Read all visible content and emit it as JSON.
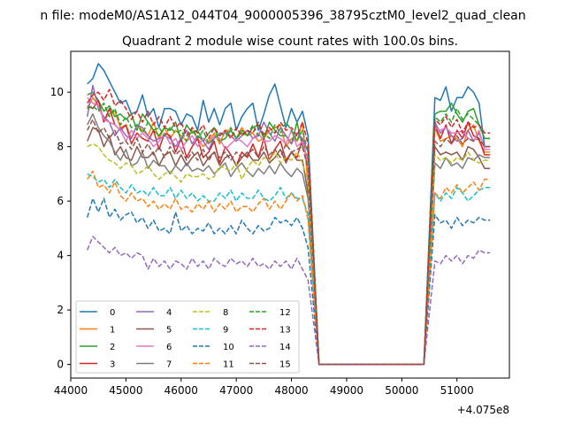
{
  "chart_data": {
    "type": "line",
    "suptitle": "n file: modeM0/AS1A12_044T04_9000005396_38795cztM0_level2_quad_clean",
    "title": "Quadrant 2 module wise count rates with 100.0s bins.",
    "xlabel": "",
    "ylabel": "",
    "x_offset_label": "+4.075e8",
    "xlim": [
      44000,
      51950
    ],
    "ylim": [
      -0.5,
      11.5
    ],
    "x_ticks": [
      44000,
      45000,
      46000,
      47000,
      48000,
      49000,
      50000,
      51000
    ],
    "y_ticks": [
      0,
      2,
      4,
      6,
      8,
      10
    ],
    "grid": false,
    "legend": {
      "placement": "lower-left",
      "columns": 4
    },
    "series": [
      {
        "name": "0",
        "color": "#1f77b4",
        "dash": "solid",
        "values": [
          10.3,
          10.5,
          11.05,
          10.8,
          10.4,
          10.0,
          9.6,
          9.7,
          9.2,
          9.3,
          9.9,
          9.1,
          9.4,
          8.7,
          9.4,
          9.4,
          9.3,
          8.8,
          9.2,
          9.1,
          8.6,
          9.7,
          8.9,
          9.4,
          8.8,
          9.4,
          9.6,
          8.6,
          9.1,
          9.4,
          9.6,
          8.6,
          9.2,
          9.9,
          10.3,
          9.5,
          8.7,
          9.4,
          8.9,
          9.3,
          8.4,
          9.8,
          9.7,
          10.2,
          9.3,
          9.8,
          9.8,
          10.2,
          10.0,
          9.6,
          8.0
        ]
      },
      {
        "name": "1",
        "color": "#ff7f0e",
        "dash": "solid",
        "values": [
          9.4,
          9.8,
          9.5,
          9.0,
          9.2,
          9.3,
          8.7,
          8.8,
          8.3,
          8.8,
          8.6,
          8.4,
          8.9,
          8.3,
          8.7,
          8.3,
          8.6,
          8.4,
          8.2,
          8.6,
          8.3,
          8.0,
          8.2,
          8.5,
          8.1,
          8.6,
          8.6,
          8.3,
          8.7,
          8.4,
          8.5,
          8.2,
          8.3,
          8.6,
          8.7,
          8.8,
          8.0,
          8.3,
          8.2,
          8.9,
          6.6,
          8.7,
          8.2,
          8.3,
          8.4,
          8.3,
          8.0,
          8.6,
          8.8,
          8.2,
          7.8
        ]
      },
      {
        "name": "2",
        "color": "#2ca02c",
        "dash": "solid",
        "values": [
          9.9,
          10.0,
          9.7,
          9.3,
          9.5,
          9.1,
          9.2,
          9.0,
          9.2,
          8.6,
          9.2,
          8.9,
          8.6,
          8.4,
          8.7,
          8.6,
          8.9,
          8.2,
          8.8,
          8.5,
          8.6,
          8.2,
          8.5,
          8.7,
          8.2,
          8.3,
          8.6,
          8.3,
          8.6,
          8.4,
          8.7,
          8.8,
          8.3,
          8.9,
          8.6,
          8.4,
          8.4,
          8.1,
          8.9,
          8.0,
          7.6,
          9.2,
          9.3,
          9.3,
          9.6,
          9.2,
          8.9,
          9.3,
          9.4,
          8.8,
          8.3
        ]
      },
      {
        "name": "3",
        "color": "#d62728",
        "dash": "solid",
        "values": [
          9.5,
          9.4,
          9.7,
          8.9,
          9.4,
          8.8,
          8.6,
          8.8,
          8.1,
          8.5,
          8.3,
          8.2,
          8.6,
          7.9,
          8.5,
          8.4,
          7.8,
          8.3,
          7.6,
          8.0,
          8.3,
          7.6,
          7.8,
          8.2,
          7.4,
          8.0,
          7.7,
          7.3,
          7.8,
          7.6,
          8.1,
          7.6,
          8.3,
          7.5,
          7.9,
          8.2,
          7.5,
          7.8,
          7.6,
          8.3,
          7.3,
          8.8,
          8.3,
          8.8,
          8.1,
          8.6,
          8.3,
          8.9,
          8.4,
          8.3,
          7.7
        ]
      },
      {
        "name": "4",
        "color": "#9467bd",
        "dash": "solid",
        "values": [
          9.1,
          10.25,
          9.4,
          9.1,
          8.9,
          8.4,
          8.7,
          8.4,
          8.3,
          8.8,
          8.7,
          8.4,
          8.2,
          8.3,
          8.4,
          8.3,
          8.0,
          8.3,
          8.6,
          8.1,
          8.4,
          8.2,
          7.9,
          8.3,
          8.5,
          8.5,
          8.4,
          8.2,
          8.4,
          8.6,
          8.3,
          8.4,
          8.9,
          8.5,
          8.2,
          8.7,
          8.4,
          8.1,
          8.5,
          8.3,
          7.8,
          8.9,
          8.5,
          8.7,
          8.4,
          8.2,
          8.3,
          8.6,
          8.2,
          8.5,
          8.0
        ]
      },
      {
        "name": "5",
        "color": "#8c564b",
        "dash": "solid",
        "values": [
          8.2,
          8.7,
          8.6,
          8.0,
          8.4,
          7.7,
          8.0,
          7.6,
          7.5,
          8.0,
          7.6,
          7.6,
          7.8,
          7.3,
          7.7,
          7.8,
          7.3,
          7.7,
          7.3,
          7.6,
          7.8,
          7.3,
          7.6,
          7.8,
          7.3,
          7.6,
          7.7,
          7.3,
          7.6,
          7.8,
          7.5,
          7.5,
          7.8,
          7.4,
          7.6,
          7.9,
          7.4,
          7.8,
          7.5,
          7.5,
          6.3,
          8.0,
          7.7,
          7.8,
          7.7,
          7.8,
          7.5,
          8.0,
          7.9,
          7.6,
          7.2
        ]
      },
      {
        "name": "6",
        "color": "#e377c2",
        "dash": "solid",
        "values": [
          9.8,
          9.6,
          9.5,
          9.0,
          8.9,
          8.8,
          8.6,
          8.2,
          8.6,
          8.3,
          8.5,
          8.3,
          8.0,
          8.2,
          8.5,
          8.1,
          8.3,
          7.9,
          8.2,
          8.4,
          8.0,
          8.3,
          8.1,
          8.4,
          8.3,
          7.9,
          8.1,
          8.3,
          8.2,
          8.0,
          8.3,
          8.5,
          8.2,
          8.2,
          8.4,
          8.3,
          8.1,
          8.6,
          8.0,
          8.2,
          7.4,
          8.7,
          8.6,
          8.7,
          8.5,
          8.5,
          8.6,
          8.3,
          8.2,
          8.6,
          7.9
        ]
      },
      {
        "name": "7",
        "color": "#7f7f7f",
        "dash": "solid",
        "values": [
          8.8,
          9.2,
          8.7,
          8.4,
          8.2,
          7.8,
          7.5,
          7.9,
          7.3,
          7.4,
          7.8,
          7.2,
          7.5,
          7.3,
          7.3,
          7.0,
          7.3,
          7.1,
          7.4,
          7.1,
          7.2,
          7.1,
          7.3,
          7.0,
          7.2,
          7.4,
          6.9,
          7.2,
          7.4,
          7.1,
          6.9,
          7.2,
          7.0,
          7.3,
          7.0,
          7.4,
          7.1,
          6.9,
          7.2,
          7.0,
          6.1,
          7.4,
          7.2,
          7.6,
          7.3,
          7.4,
          7.2,
          7.6,
          7.5,
          7.7,
          7.6
        ]
      },
      {
        "name": "8",
        "color": "#bcbd22",
        "dash": "dashed",
        "values": [
          8.0,
          8.1,
          8.0,
          7.7,
          7.5,
          7.4,
          7.2,
          7.4,
          7.3,
          7.0,
          7.1,
          7.3,
          7.0,
          6.8,
          7.0,
          7.1,
          6.9,
          6.7,
          7.0,
          6.9,
          6.9,
          7.0,
          6.8,
          6.9,
          7.3,
          7.2,
          7.1,
          7.4,
          6.8,
          7.2,
          7.5,
          7.3,
          7.6,
          7.5,
          7.8,
          7.4,
          7.6,
          7.5,
          7.8,
          7.4,
          6.7,
          7.7,
          7.5,
          7.6,
          7.4,
          7.6,
          7.5,
          7.8,
          7.5,
          7.4,
          7.5
        ]
      },
      {
        "name": "9",
        "color": "#17becf",
        "dash": "dashed",
        "values": [
          7.0,
          6.9,
          6.7,
          6.8,
          6.5,
          6.8,
          6.5,
          6.3,
          6.6,
          6.3,
          6.4,
          6.2,
          6.5,
          6.2,
          6.2,
          6.5,
          6.1,
          6.4,
          6.1,
          6.3,
          6.0,
          6.2,
          6.0,
          6.0,
          6.3,
          6.1,
          6.4,
          6.0,
          6.3,
          6.1,
          6.1,
          6.4,
          6.1,
          6.0,
          6.2,
          6.5,
          6.1,
          6.3,
          6.1,
          6.1,
          5.5,
          6.3,
          6.0,
          6.3,
          6.1,
          6.5,
          6.3,
          6.0,
          6.2,
          6.4,
          6.5
        ]
      },
      {
        "name": "10",
        "color": "#1f77b4",
        "dash": "dashed",
        "values": [
          5.4,
          6.1,
          5.6,
          6.1,
          5.4,
          5.7,
          5.3,
          5.5,
          5.6,
          5.2,
          5.4,
          5.0,
          5.3,
          4.9,
          5.0,
          4.8,
          5.6,
          4.9,
          5.1,
          4.8,
          5.0,
          4.9,
          5.2,
          4.8,
          5.0,
          4.8,
          5.1,
          4.8,
          5.3,
          5.0,
          4.8,
          5.1,
          4.9,
          5.0,
          5.4,
          5.2,
          5.3,
          5.1,
          5.4,
          5.0,
          4.3,
          5.5,
          5.2,
          5.3,
          5.0,
          5.4,
          5.1,
          5.3,
          5.2,
          5.4,
          5.3
        ]
      },
      {
        "name": "11",
        "color": "#ff7f0e",
        "dash": "dashed",
        "values": [
          6.8,
          7.1,
          6.5,
          6.6,
          6.3,
          6.7,
          6.2,
          6.0,
          6.3,
          6.0,
          6.1,
          5.8,
          6.0,
          5.7,
          5.9,
          5.7,
          6.1,
          5.7,
          5.8,
          5.6,
          5.9,
          5.7,
          6.0,
          5.6,
          5.9,
          5.7,
          6.0,
          5.6,
          5.8,
          5.8,
          5.6,
          5.9,
          6.1,
          5.7,
          6.0,
          5.7,
          6.0,
          6.3,
          6.0,
          6.2,
          5.3,
          6.3,
          6.1,
          6.5,
          6.3,
          6.6,
          6.3,
          6.5,
          6.7,
          6.4,
          6.8
        ]
      },
      {
        "name": "12",
        "color": "#2ca02c",
        "dash": "dashed",
        "values": [
          9.4,
          9.5,
          9.3,
          9.6,
          9.1,
          9.4,
          8.8,
          9.1,
          8.7,
          8.8,
          8.5,
          8.9,
          8.6,
          8.7,
          8.4,
          8.7,
          8.5,
          8.6,
          8.2,
          8.7,
          8.3,
          8.6,
          8.1,
          8.3,
          8.5,
          8.4,
          8.7,
          8.3,
          8.5,
          8.4,
          8.8,
          8.4,
          8.5,
          8.3,
          8.8,
          8.5,
          8.9,
          8.6,
          8.2,
          8.6,
          7.8,
          9.1,
          8.9,
          9.2,
          8.9,
          9.4,
          9.0,
          9.2,
          9.0,
          8.8,
          8.3
        ]
      },
      {
        "name": "13",
        "color": "#d62728",
        "dash": "dashed",
        "values": [
          9.6,
          9.9,
          10.0,
          9.7,
          10.1,
          9.5,
          9.7,
          9.4,
          9.0,
          9.3,
          8.9,
          9.3,
          8.8,
          9.1,
          8.7,
          9.1,
          8.7,
          8.9,
          8.4,
          8.7,
          8.5,
          8.8,
          8.3,
          8.7,
          8.4,
          8.6,
          8.3,
          8.7,
          8.4,
          8.6,
          8.5,
          8.9,
          8.4,
          8.7,
          8.5,
          8.9,
          8.6,
          8.7,
          8.4,
          8.9,
          8.1,
          9.0,
          8.8,
          9.1,
          8.7,
          9.0,
          8.5,
          8.9,
          8.7,
          8.8,
          8.5
        ]
      },
      {
        "name": "14",
        "color": "#9467bd",
        "dash": "dashed",
        "values": [
          4.2,
          4.7,
          4.5,
          4.3,
          4.1,
          4.3,
          4.0,
          4.1,
          3.9,
          4.1,
          4.0,
          3.5,
          3.9,
          3.6,
          3.8,
          3.5,
          3.8,
          3.7,
          3.5,
          3.9,
          3.6,
          3.8,
          3.5,
          3.9,
          3.7,
          3.6,
          3.9,
          3.7,
          3.8,
          3.6,
          3.9,
          3.6,
          3.7,
          3.5,
          3.8,
          3.6,
          3.8,
          3.5,
          3.9,
          3.5,
          3.1,
          3.8,
          3.7,
          4.0,
          3.8,
          4.0,
          3.7,
          4.0,
          3.9,
          4.2,
          4.1
        ]
      },
      {
        "name": "15",
        "color": "#8c564b",
        "dash": "dashed",
        "values": [
          8.6,
          9.0,
          8.5,
          8.7,
          8.3,
          8.6,
          8.1,
          8.2,
          7.9,
          8.3,
          7.8,
          8.1,
          7.7,
          8.0,
          7.6,
          8.0,
          7.7,
          7.9,
          7.5,
          7.8,
          7.5,
          7.9,
          7.5,
          7.8,
          7.6,
          7.8,
          7.5,
          7.8,
          7.6,
          7.7,
          7.9,
          7.6,
          8.0,
          7.7,
          7.9,
          7.6,
          8.1,
          7.8,
          7.9,
          8.0,
          7.2,
          8.2,
          8.0,
          8.3,
          8.1,
          8.4,
          8.1,
          8.3,
          8.2,
          8.3,
          8.0
        ]
      }
    ]
  }
}
